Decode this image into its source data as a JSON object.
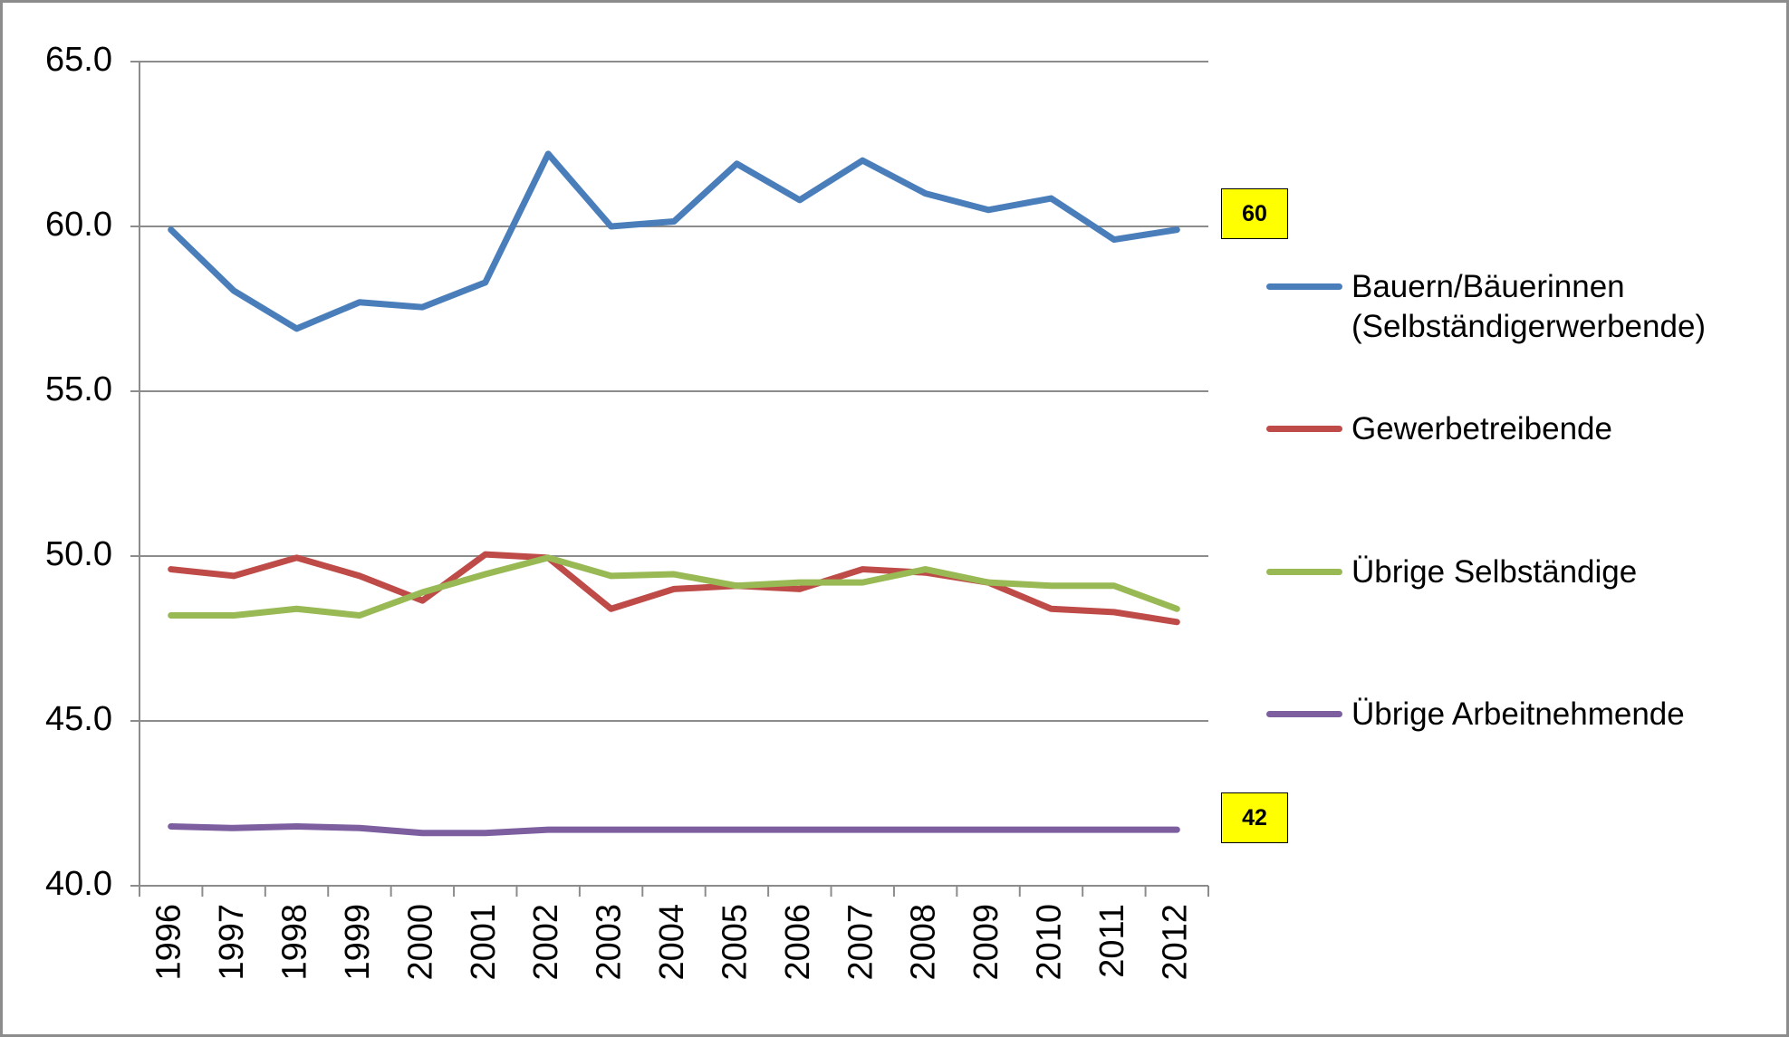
{
  "chart_data": {
    "type": "line",
    "categories": [
      "1996",
      "1997",
      "1998",
      "1999",
      "2000",
      "2001",
      "2002",
      "2003",
      "2004",
      "2005",
      "2006",
      "2007",
      "2008",
      "2009",
      "2010",
      "2011",
      "2012"
    ],
    "series": [
      {
        "name": "Bauern/Bäuerinnen (Selbständigerwerbende)",
        "color": "#4a7ebb",
        "values": [
          59.9,
          58.05,
          56.9,
          57.7,
          57.55,
          58.3,
          62.2,
          60.0,
          60.15,
          61.9,
          60.8,
          62.0,
          61.0,
          60.5,
          60.85,
          59.6,
          59.9
        ]
      },
      {
        "name": "Gewerbetreibende",
        "color": "#be4b48",
        "values": [
          49.6,
          49.4,
          49.95,
          49.4,
          48.65,
          50.05,
          49.95,
          48.4,
          49.0,
          49.1,
          49.0,
          49.6,
          49.5,
          49.2,
          48.4,
          48.3,
          48.0
        ]
      },
      {
        "name": "Übrige Selbständige",
        "color": "#98b954",
        "values": [
          48.2,
          48.2,
          48.4,
          48.2,
          48.9,
          49.45,
          49.95,
          49.4,
          49.45,
          49.1,
          49.2,
          49.2,
          49.6,
          49.2,
          49.1,
          49.1,
          48.4
        ]
      },
      {
        "name": "Übrige Arbeitnehmende",
        "color": "#7d5fa0",
        "values": [
          41.8,
          41.75,
          41.8,
          41.75,
          41.6,
          41.6,
          41.7,
          41.7,
          41.7,
          41.7,
          41.7,
          41.7,
          41.7,
          41.7,
          41.7,
          41.7,
          41.7
        ]
      }
    ],
    "ylim": [
      40,
      65
    ],
    "yticks": [
      {
        "value": 40,
        "label": "40.0"
      },
      {
        "value": 45,
        "label": "45.0"
      },
      {
        "value": 50,
        "label": "50.0"
      },
      {
        "value": 55,
        "label": "55.0"
      },
      {
        "value": 60,
        "label": "60.0"
      },
      {
        "value": 65,
        "label": "65.0"
      }
    ],
    "grid": true,
    "legend": "right",
    "annotations": [
      "60",
      "42"
    ]
  }
}
